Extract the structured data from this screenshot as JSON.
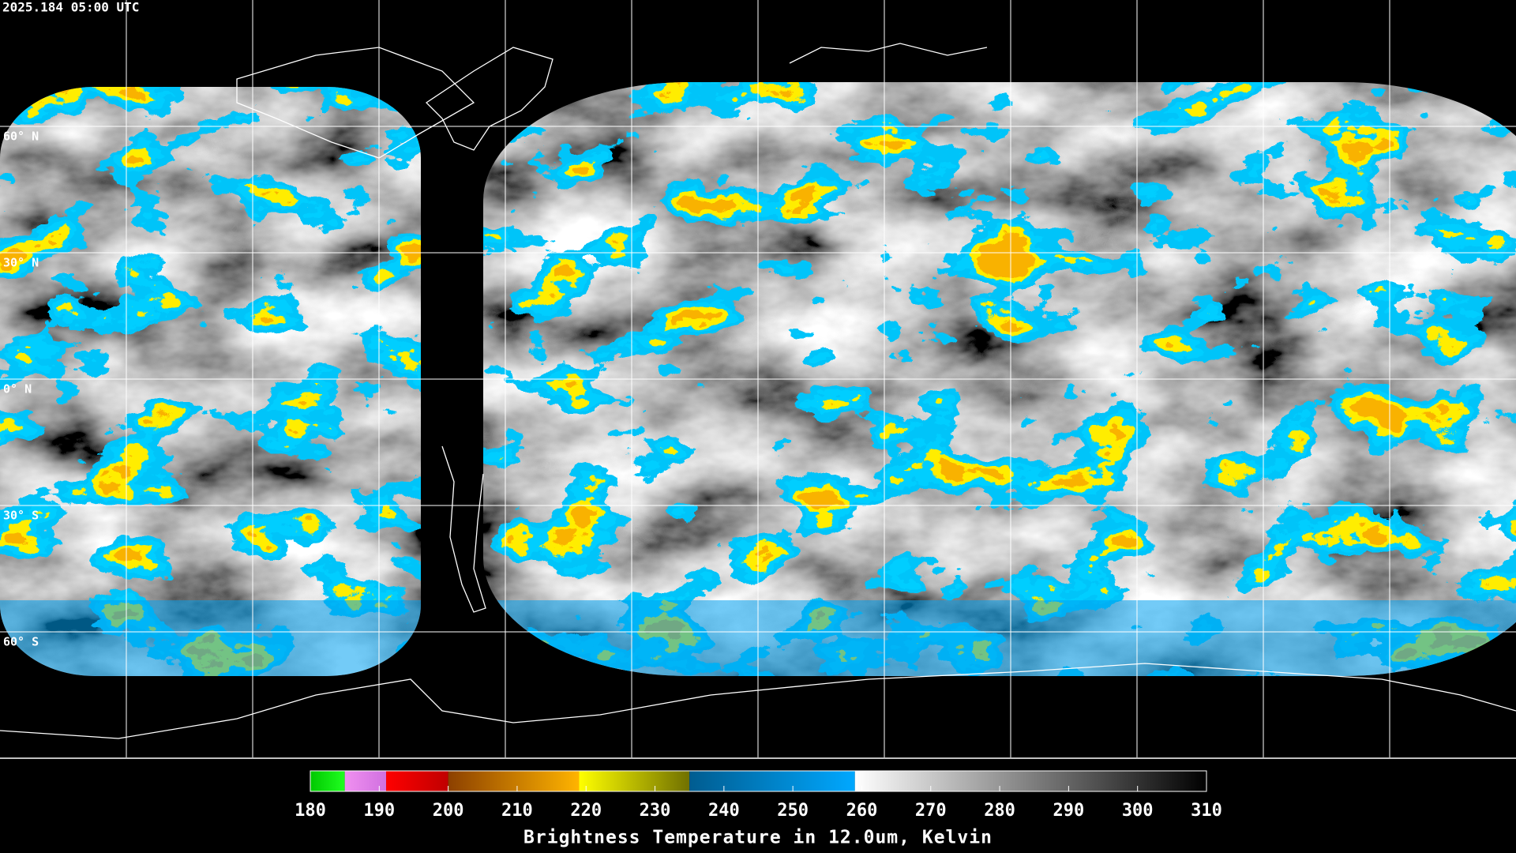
{
  "header": {
    "timestamp": "2025.184 05:00 UTC"
  },
  "map": {
    "latitude_labels": [
      "60° N",
      "30° N",
      "0° N",
      "30° S",
      "60° S"
    ]
  },
  "colorbar": {
    "range": [
      180,
      310
    ],
    "ticks": [
      180,
      190,
      200,
      210,
      220,
      230,
      240,
      250,
      260,
      270,
      280,
      290,
      300,
      310
    ],
    "label": "Brightness Temperature in 12.0um, Kelvin",
    "segments": [
      {
        "from": 180,
        "to": 185,
        "colors": [
          "#00c800",
          "#20ff20"
        ]
      },
      {
        "from": 185,
        "to": 191,
        "colors": [
          "#f090f0",
          "#d070e0"
        ]
      },
      {
        "from": 191,
        "to": 200,
        "colors": [
          "#ff0000",
          "#c00000"
        ]
      },
      {
        "from": 200,
        "to": 219,
        "colors": [
          "#8c4000",
          "#ffb400"
        ]
      },
      {
        "from": 219,
        "to": 235,
        "colors": [
          "#ffff00",
          "#707000"
        ]
      },
      {
        "from": 235,
        "to": 259,
        "colors": [
          "#005c90",
          "#00a8ff"
        ]
      },
      {
        "from": 259,
        "to": 310,
        "colors": [
          "#ffffff",
          "#000000"
        ]
      }
    ]
  }
}
